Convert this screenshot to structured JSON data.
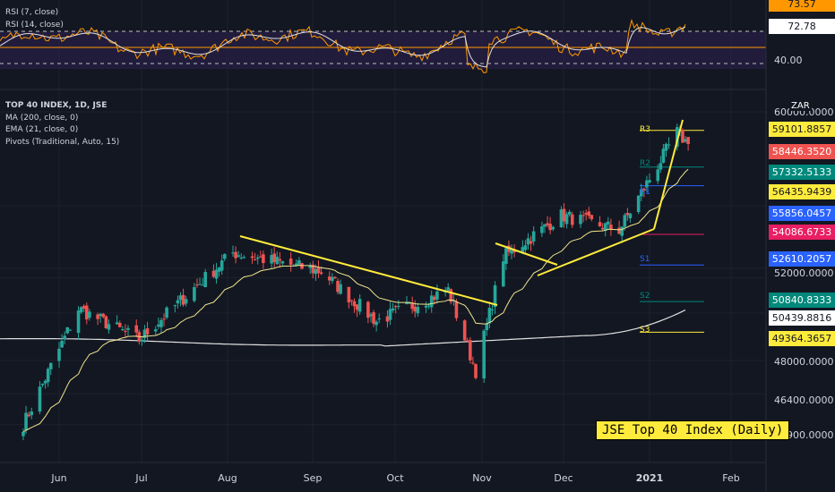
{
  "rsi_panel": {
    "legend": [
      "RSI (7, close)",
      "RSI (14, close)"
    ],
    "axis_labels": [
      "40.00"
    ],
    "badges": [
      {
        "value": "73.57",
        "bg": "#ff9800",
        "fg": "#131722"
      },
      {
        "value": "72.78",
        "bg": "#ffffff",
        "fg": "#131722"
      }
    ],
    "levels": [
      70,
      50,
      30
    ]
  },
  "main_panel": {
    "legend": {
      "header": "TOP 40 INDEX, 1D, JSE",
      "lines": [
        "MA (200, close, 0)",
        "EMA (21, close, 0)",
        "Pivots (Traditional, Auto, 15)"
      ]
    },
    "currency": "ZAR",
    "axis_labels": [
      "60000.0000",
      "52000.0000",
      "48000.0000",
      "46400.0000",
      "44900.0000"
    ],
    "price_badges": [
      {
        "value": "59101.8857",
        "bg": "#ffeb3b",
        "fg": "#131722",
        "price": 59101.8857
      },
      {
        "value": "58446.3520",
        "bg": "#ef5350",
        "fg": "#ffffff",
        "price": 58446.352
      },
      {
        "value": "57332.5133",
        "bg": "#00897b",
        "fg": "#ffffff",
        "price": 57332.5133
      },
      {
        "value": "56435.9439",
        "bg": "#ffeb3b",
        "fg": "#131722",
        "price": 56435.9439
      },
      {
        "value": "55856.0457",
        "bg": "#2962ff",
        "fg": "#ffffff",
        "price": 55856.0457
      },
      {
        "value": "54086.6733",
        "bg": "#e91e63",
        "fg": "#ffffff",
        "price": 54086.6733
      },
      {
        "value": "52610.2057",
        "bg": "#2962ff",
        "fg": "#ffffff",
        "price": 52610.2057
      },
      {
        "value": "50840.8333",
        "bg": "#00897b",
        "fg": "#ffffff",
        "price": 50840.8333
      },
      {
        "value": "50439.8816",
        "bg": "#ffffff",
        "fg": "#131722",
        "price": 50439.8816
      },
      {
        "value": "49364.3657",
        "bg": "#ffeb3b",
        "fg": "#131722",
        "price": 49364.3657
      }
    ],
    "pivots": [
      {
        "name": "R3",
        "price": 59101.8857,
        "color": "#ffeb3b"
      },
      {
        "name": "R2",
        "price": 57332.5133,
        "color": "#00897b"
      },
      {
        "name": "R1",
        "price": 56435.9439,
        "color": "#2962ff"
      },
      {
        "name": "P",
        "price": 54086.6733,
        "color": "#e91e63"
      },
      {
        "name": "S1",
        "price": 52610.2057,
        "color": "#2962ff"
      },
      {
        "name": "S2",
        "price": 50840.8333,
        "color": "#00897b"
      },
      {
        "name": "S3",
        "price": 49364.3657,
        "color": "#ffeb3b"
      }
    ],
    "title_box": "JSE Top 40 Index (Daily)"
  },
  "time_axis": {
    "labels": [
      {
        "text": "Jun",
        "bold": false
      },
      {
        "text": "Jul",
        "bold": false
      },
      {
        "text": "Aug",
        "bold": false
      },
      {
        "text": "Sep",
        "bold": false
      },
      {
        "text": "Oct",
        "bold": false
      },
      {
        "text": "Nov",
        "bold": false
      },
      {
        "text": "Dec",
        "bold": false
      },
      {
        "text": "2021",
        "bold": true
      },
      {
        "text": "Feb",
        "bold": false
      }
    ]
  },
  "colors": {
    "up": "#26a69a",
    "down": "#ef5350",
    "ma": "#e0e0e0",
    "ema": "#f0e68c",
    "trend": "#ffeb3b",
    "rsi7": "#ff9800",
    "rsi14": "#e0e0e0",
    "bg": "#131722"
  },
  "chart_data": {
    "type": "candlestick",
    "ylim": [
      44400,
      60600
    ],
    "key_points": [
      {
        "date": "2020-05-19",
        "close": 44900
      },
      {
        "date": "2020-06-08",
        "close": 50500
      },
      {
        "date": "2020-06-30",
        "close": 49000
      },
      {
        "date": "2020-07-20",
        "close": 51500
      },
      {
        "date": "2020-08-03",
        "close": 53200
      },
      {
        "date": "2020-09-04",
        "close": 52300
      },
      {
        "date": "2020-09-24",
        "close": 49900
      },
      {
        "date": "2020-10-20",
        "close": 51400
      },
      {
        "date": "2020-10-30",
        "close": 47500
      },
      {
        "date": "2020-11-09",
        "close": 53000
      },
      {
        "date": "2020-11-30",
        "close": 55000
      },
      {
        "date": "2020-12-21",
        "close": 54300
      },
      {
        "date": "2021-01-11",
        "close": 59000
      },
      {
        "date": "2021-01-15",
        "close": 58446.352
      }
    ],
    "last_close": 58446.352,
    "ma200_last": 50439.8816,
    "rsi7_last": 73.57,
    "rsi14_last": 72.78
  }
}
